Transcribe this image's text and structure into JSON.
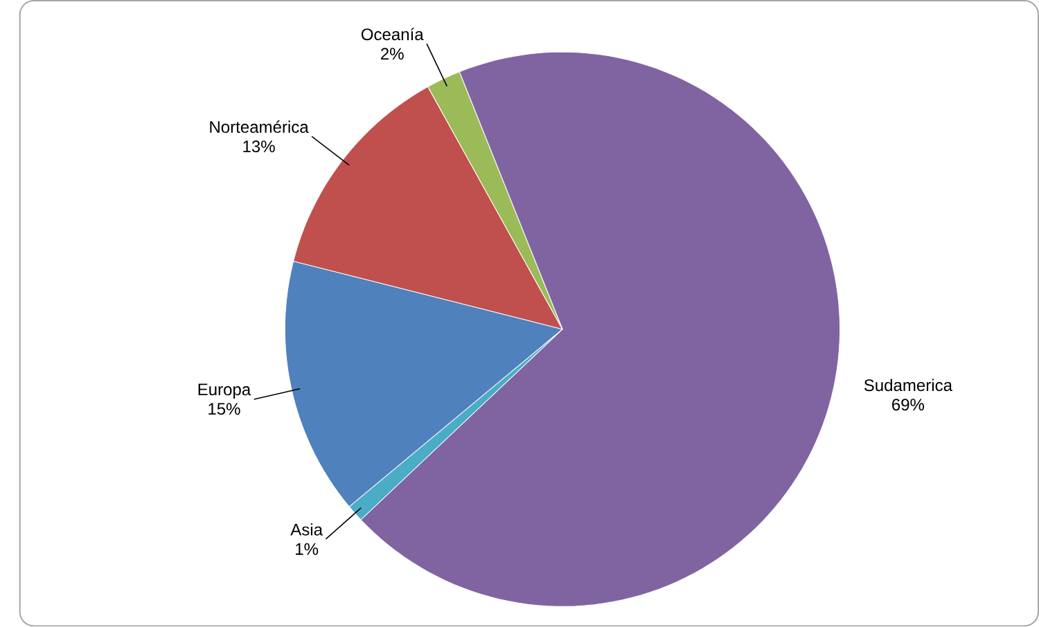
{
  "chart_data": {
    "type": "pie",
    "categories": [
      "Sudamerica",
      "Asia",
      "Europa",
      "Norteamérica",
      "Oceanía"
    ],
    "values": [
      69,
      1,
      15,
      13,
      2
    ],
    "value_labels": [
      "69%",
      "1%",
      "15%",
      "13%",
      "2%"
    ],
    "colors": [
      "#8064a2",
      "#4bacc6",
      "#4f81bd",
      "#c0504d",
      "#9bbb59"
    ]
  }
}
